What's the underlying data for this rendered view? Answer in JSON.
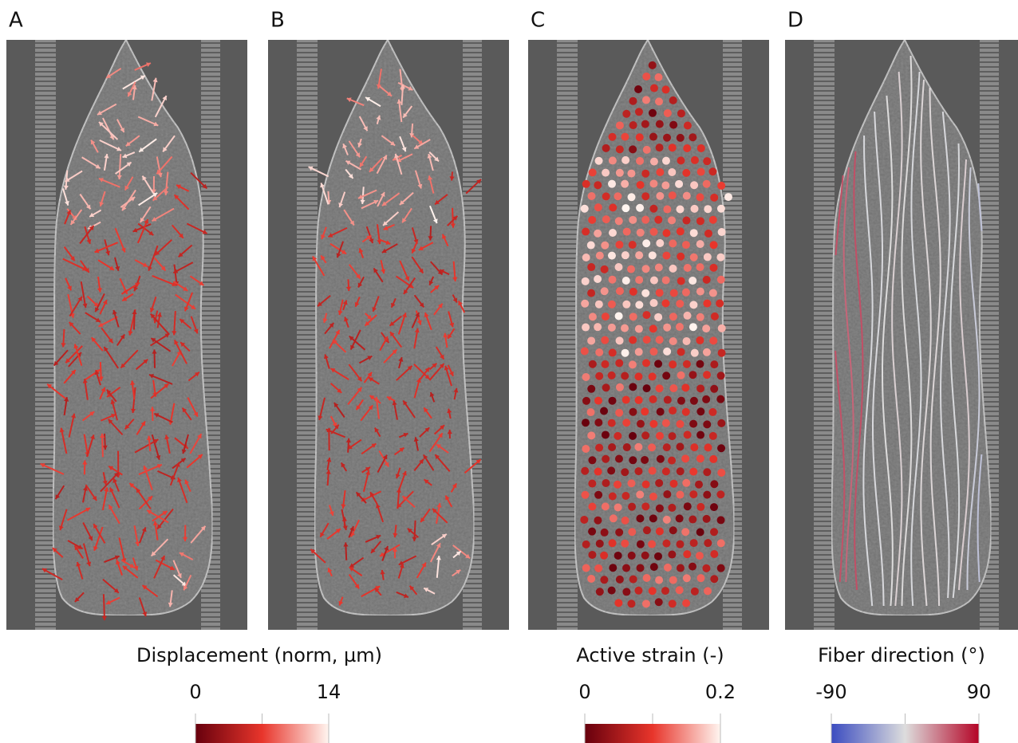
{
  "panels": [
    {
      "label": "A"
    },
    {
      "label": "B"
    },
    {
      "label": "C"
    },
    {
      "label": "D"
    }
  ],
  "colorbars": [
    {
      "title": "Displacement (norm, µm)",
      "lim": [
        0,
        14
      ],
      "ticks": [
        0,
        14
      ],
      "colors": [
        "#67000d",
        "#e8352b",
        "#fff5f0"
      ]
    },
    {
      "title": "Active strain (-)",
      "lim": [
        0,
        0.2
      ],
      "ticks": [
        0,
        0.2
      ],
      "colors": [
        "#67000d",
        "#e8352b",
        "#fff5f0"
      ]
    },
    {
      "title": "Fiber direction (°)",
      "lim": [
        -90,
        90
      ],
      "ticks": [
        -90,
        90
      ],
      "colors": [
        "#3b4cc0",
        "#dddddd",
        "#b40426"
      ]
    }
  ]
}
